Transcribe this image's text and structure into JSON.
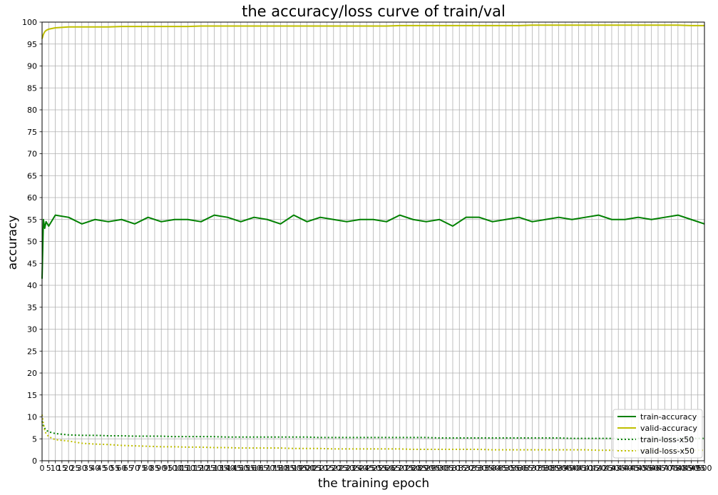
{
  "chart_data": {
    "type": "line",
    "title": "the accuracy/loss curve of train/val",
    "xlabel": "the training epoch",
    "ylabel": "accuracy",
    "xlim": [
      0,
      500
    ],
    "ylim": [
      0,
      100
    ],
    "x_ticks": [
      0,
      5,
      10,
      15,
      20,
      25,
      30,
      35,
      40,
      45,
      50,
      55,
      60,
      65,
      70,
      75,
      80,
      85,
      90,
      95,
      100,
      105,
      110,
      115,
      120,
      125,
      130,
      135,
      140,
      145,
      150,
      155,
      160,
      165,
      170,
      175,
      180,
      185,
      190,
      195,
      200,
      205,
      210,
      215,
      220,
      225,
      230,
      235,
      240,
      245,
      250,
      255,
      260,
      265,
      270,
      275,
      280,
      285,
      290,
      295,
      300,
      305,
      310,
      315,
      320,
      325,
      330,
      335,
      340,
      345,
      350,
      355,
      360,
      365,
      370,
      375,
      380,
      385,
      390,
      395,
      400,
      405,
      410,
      415,
      420,
      425,
      430,
      435,
      440,
      445,
      450,
      455,
      460,
      465,
      470,
      475,
      480,
      485,
      490,
      495,
      500
    ],
    "y_ticks": [
      0,
      5,
      10,
      15,
      20,
      25,
      30,
      35,
      40,
      45,
      50,
      55,
      60,
      65,
      70,
      75,
      80,
      85,
      90,
      95,
      100
    ],
    "grid": true,
    "legend_position": "bottom-right",
    "series_x": [
      0,
      1,
      2,
      3,
      5,
      10,
      20,
      30,
      40,
      50,
      60,
      70,
      80,
      90,
      100,
      110,
      120,
      130,
      140,
      150,
      160,
      170,
      180,
      190,
      200,
      210,
      220,
      230,
      240,
      250,
      260,
      270,
      280,
      290,
      300,
      310,
      320,
      330,
      340,
      350,
      360,
      370,
      380,
      390,
      400,
      410,
      420,
      430,
      440,
      450,
      460,
      470,
      480,
      490,
      500
    ],
    "series": [
      {
        "name": "train-accuracy",
        "color": "#008000",
        "style": "solid",
        "values": [
          41.5,
          55.0,
          53.0,
          54.5,
          53.5,
          56.0,
          55.5,
          54.0,
          55.0,
          54.5,
          55.0,
          54.0,
          55.5,
          54.5,
          55.0,
          55.0,
          54.5,
          56.0,
          55.5,
          54.5,
          55.5,
          55.0,
          54.0,
          56.0,
          54.5,
          55.5,
          55.0,
          54.5,
          55.0,
          55.0,
          54.5,
          56.0,
          55.0,
          54.5,
          55.0,
          53.5,
          55.5,
          55.5,
          54.5,
          55.0,
          55.5,
          54.5,
          55.0,
          55.5,
          55.0,
          55.5,
          56.0,
          55.0,
          55.0,
          55.5,
          55.0,
          55.5,
          56.0,
          55.0,
          54.0
        ]
      },
      {
        "name": "valid-accuracy",
        "color": "#bfbf00",
        "style": "solid",
        "values": [
          96.2,
          97.2,
          97.8,
          98.1,
          98.4,
          98.7,
          98.9,
          98.9,
          98.9,
          98.9,
          99.0,
          99.0,
          99.0,
          99.0,
          99.0,
          99.0,
          99.1,
          99.1,
          99.1,
          99.1,
          99.1,
          99.1,
          99.1,
          99.1,
          99.1,
          99.1,
          99.1,
          99.1,
          99.1,
          99.1,
          99.1,
          99.2,
          99.2,
          99.2,
          99.2,
          99.2,
          99.2,
          99.2,
          99.2,
          99.2,
          99.2,
          99.3,
          99.3,
          99.3,
          99.3,
          99.3,
          99.3,
          99.3,
          99.3,
          99.3,
          99.3,
          99.3,
          99.3,
          99.2,
          99.2
        ]
      },
      {
        "name": "train-loss-x50",
        "color": "#008000",
        "style": "dotted",
        "values": [
          9.0,
          8.0,
          7.4,
          7.0,
          6.6,
          6.2,
          5.9,
          5.8,
          5.8,
          5.7,
          5.7,
          5.6,
          5.6,
          5.6,
          5.5,
          5.5,
          5.5,
          5.5,
          5.4,
          5.4,
          5.4,
          5.4,
          5.4,
          5.4,
          5.4,
          5.3,
          5.3,
          5.3,
          5.3,
          5.3,
          5.3,
          5.3,
          5.3,
          5.3,
          5.2,
          5.2,
          5.2,
          5.2,
          5.2,
          5.2,
          5.2,
          5.2,
          5.2,
          5.2,
          5.1,
          5.1,
          5.1,
          5.1,
          5.1,
          5.1,
          5.1,
          5.1,
          5.1,
          5.1,
          5.1
        ]
      },
      {
        "name": "valid-loss-x50",
        "color": "#bfbf00",
        "style": "dotted",
        "values": [
          10.5,
          8.5,
          7.0,
          6.2,
          5.5,
          4.8,
          4.5,
          4.0,
          3.8,
          3.7,
          3.5,
          3.4,
          3.3,
          3.2,
          3.2,
          3.1,
          3.1,
          3.0,
          3.0,
          2.9,
          2.9,
          2.9,
          2.9,
          2.8,
          2.8,
          2.8,
          2.7,
          2.7,
          2.7,
          2.7,
          2.7,
          2.7,
          2.6,
          2.6,
          2.6,
          2.6,
          2.6,
          2.6,
          2.5,
          2.5,
          2.5,
          2.5,
          2.5,
          2.5,
          2.5,
          2.5,
          2.4,
          2.4,
          2.4,
          2.4,
          2.4,
          2.4,
          2.4,
          2.4,
          2.4
        ]
      }
    ]
  }
}
